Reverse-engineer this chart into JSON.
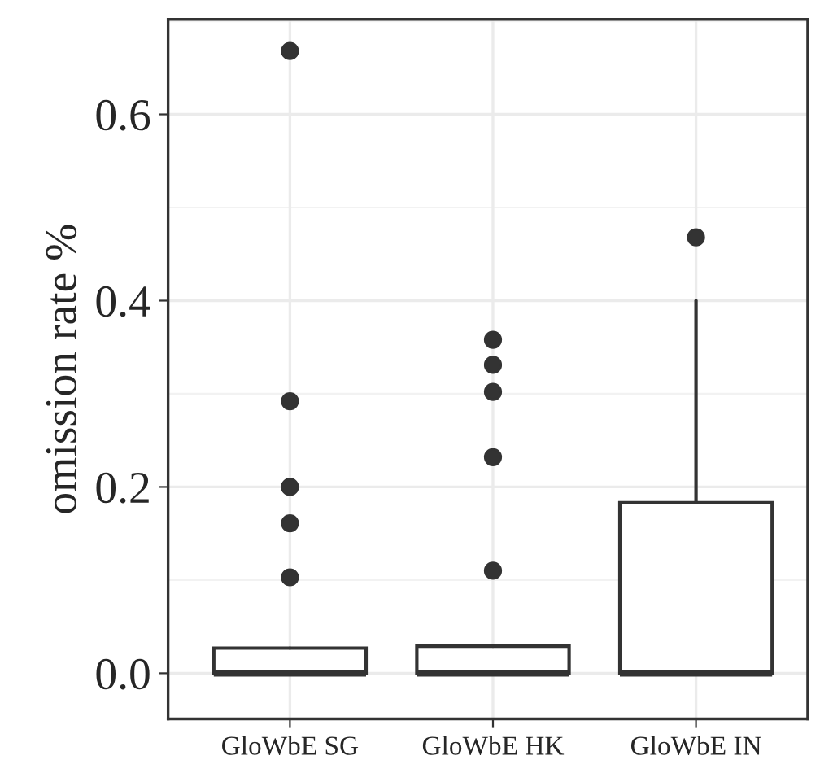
{
  "chart_data": {
    "type": "box",
    "ylabel": "omission rate %",
    "categories": [
      "GloWbE SG",
      "GloWbE HK",
      "GloWbE IN"
    ],
    "boxes": [
      {
        "low": 0,
        "q1": 0,
        "median": 0,
        "q3": 0.027,
        "high": 0.027,
        "outliers": [
          0.668,
          0.292,
          0.2,
          0.161,
          0.103
        ]
      },
      {
        "low": 0,
        "q1": 0,
        "median": 0,
        "q3": 0.029,
        "high": 0.029,
        "outliers": [
          0.358,
          0.331,
          0.302,
          0.232,
          0.11
        ]
      },
      {
        "low": 0,
        "q1": 0,
        "median": 0,
        "q3": 0.183,
        "high": 0.4,
        "outliers": [
          0.468
        ]
      }
    ],
    "color": "#333333",
    "ylim": [
      -0.049,
      0.702
    ],
    "yticks": [
      {
        "value": 0,
        "label": "0.0"
      },
      {
        "value": 0.2,
        "label": "0.2"
      },
      {
        "value": 0.4,
        "label": "0.4"
      },
      {
        "value": 0.6,
        "label": "0.6"
      }
    ],
    "grid": true
  }
}
